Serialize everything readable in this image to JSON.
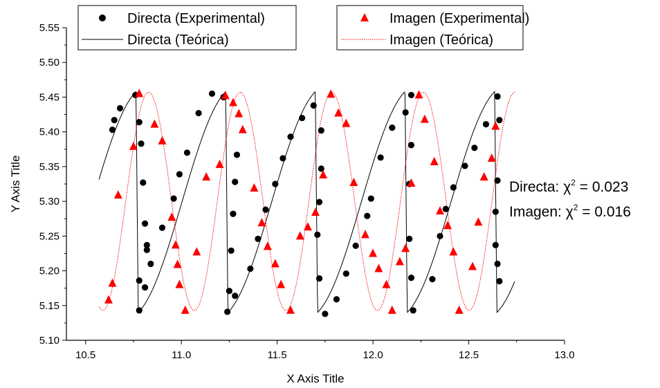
{
  "chart_data": {
    "type": "scatter",
    "xlabel": "X Axis Title",
    "ylabel": "Y Axis Title",
    "xlim": [
      10.4,
      13.0
    ],
    "ylim": [
      5.1,
      5.55
    ],
    "x_ticks": [
      "10.5",
      "11.0",
      "11.5",
      "12.0",
      "12.5",
      "13.0"
    ],
    "y_ticks": [
      "5.10",
      "5.15",
      "5.20",
      "5.25",
      "5.30",
      "5.35",
      "5.40",
      "5.45",
      "5.50",
      "5.55"
    ],
    "grid": false,
    "legend_placement": "top",
    "annotations": [
      {
        "prefix": "Directa: ",
        "chi": "χ",
        "sup": "2",
        "suffix": " = 0.023"
      },
      {
        "prefix": "Imagen: ",
        "chi": "χ",
        "sup": "2",
        "suffix": " = 0.016"
      }
    ],
    "series": [
      {
        "name": "Directa (Experimental)",
        "marker": "circle",
        "color": "#000000",
        "x": [
          10.64,
          10.65,
          10.68,
          10.76,
          10.78,
          10.79,
          10.8,
          10.81,
          10.82,
          10.84,
          10.81,
          10.78,
          10.78,
          10.82,
          10.9,
          10.96,
          10.99,
          11.03,
          11.09,
          11.16,
          11.22,
          11.29,
          11.28,
          11.27,
          11.26,
          11.25,
          11.24,
          11.28,
          11.36,
          11.4,
          11.44,
          11.49,
          11.53,
          11.57,
          11.63,
          11.69,
          11.73,
          11.73,
          11.72,
          11.71,
          11.72,
          11.75,
          11.81,
          11.86,
          11.91,
          11.97,
          11.99,
          12.04,
          12.1,
          12.17,
          12.2,
          12.2,
          12.19,
          12.19,
          12.2,
          12.21,
          12.31,
          12.35,
          12.38,
          12.42,
          12.48,
          12.53,
          12.59,
          12.65,
          12.66,
          12.65,
          12.64,
          12.64,
          12.65,
          12.66
        ],
        "y": [
          5.403,
          5.417,
          5.434,
          5.453,
          5.414,
          5.383,
          5.327,
          5.268,
          5.237,
          5.21,
          5.176,
          5.143,
          5.186,
          5.23,
          5.262,
          5.304,
          5.339,
          5.37,
          5.427,
          5.455,
          5.45,
          5.367,
          5.328,
          5.282,
          5.229,
          5.171,
          5.141,
          5.164,
          5.203,
          5.246,
          5.288,
          5.325,
          5.362,
          5.393,
          5.42,
          5.438,
          5.402,
          5.347,
          5.299,
          5.252,
          5.189,
          5.138,
          5.159,
          5.196,
          5.236,
          5.279,
          5.304,
          5.363,
          5.406,
          5.428,
          5.453,
          5.381,
          5.325,
          5.246,
          5.19,
          5.143,
          5.188,
          5.25,
          5.289,
          5.32,
          5.351,
          5.377,
          5.411,
          5.451,
          5.417,
          5.33,
          5.285,
          5.237,
          5.21,
          5.185
        ]
      },
      {
        "name": "Imagen (Experimental)",
        "marker": "triangle",
        "color": "#ff0000",
        "x": [
          10.62,
          10.64,
          10.67,
          10.75,
          10.78,
          10.86,
          10.9,
          10.95,
          10.97,
          10.98,
          10.99,
          11.02,
          11.08,
          11.13,
          11.2,
          11.23,
          11.27,
          11.3,
          11.32,
          11.38,
          11.42,
          11.45,
          11.49,
          11.52,
          11.57,
          11.62,
          11.66,
          11.7,
          11.74,
          11.78,
          11.82,
          11.86,
          11.9,
          11.96,
          12.0,
          12.03,
          12.07,
          12.1,
          12.14,
          12.17,
          12.2,
          12.24,
          12.27,
          12.32,
          12.35,
          12.39,
          12.42,
          12.45,
          12.52,
          12.55,
          12.58,
          12.62,
          12.64
        ],
        "y": [
          5.158,
          5.182,
          5.309,
          5.379,
          5.455,
          5.411,
          5.387,
          5.277,
          5.237,
          5.209,
          5.18,
          5.143,
          5.227,
          5.335,
          5.353,
          5.452,
          5.442,
          5.426,
          5.403,
          5.319,
          5.269,
          5.235,
          5.21,
          5.18,
          5.143,
          5.25,
          5.263,
          5.284,
          5.338,
          5.454,
          5.427,
          5.412,
          5.327,
          5.252,
          5.225,
          5.203,
          5.18,
          5.143,
          5.213,
          5.232,
          5.326,
          5.453,
          5.418,
          5.357,
          5.286,
          5.265,
          5.227,
          5.143,
          5.206,
          5.27,
          5.335,
          5.362,
          5.408
        ]
      },
      {
        "name": "Directa (Teórica)",
        "line": "solid",
        "color": "#000000",
        "period": 0.468,
        "x_start": 10.57,
        "x_end": 12.74,
        "y_min": 5.14,
        "y_max": 5.458,
        "fall_x": 10.775
      },
      {
        "name": "Imagen (Teórica)",
        "line": "dotted",
        "color": "#ff0000",
        "period": 0.478,
        "x_start": 10.57,
        "x_end": 12.74,
        "y_min": 5.143,
        "y_max": 5.457,
        "min_x": 10.59
      }
    ]
  }
}
